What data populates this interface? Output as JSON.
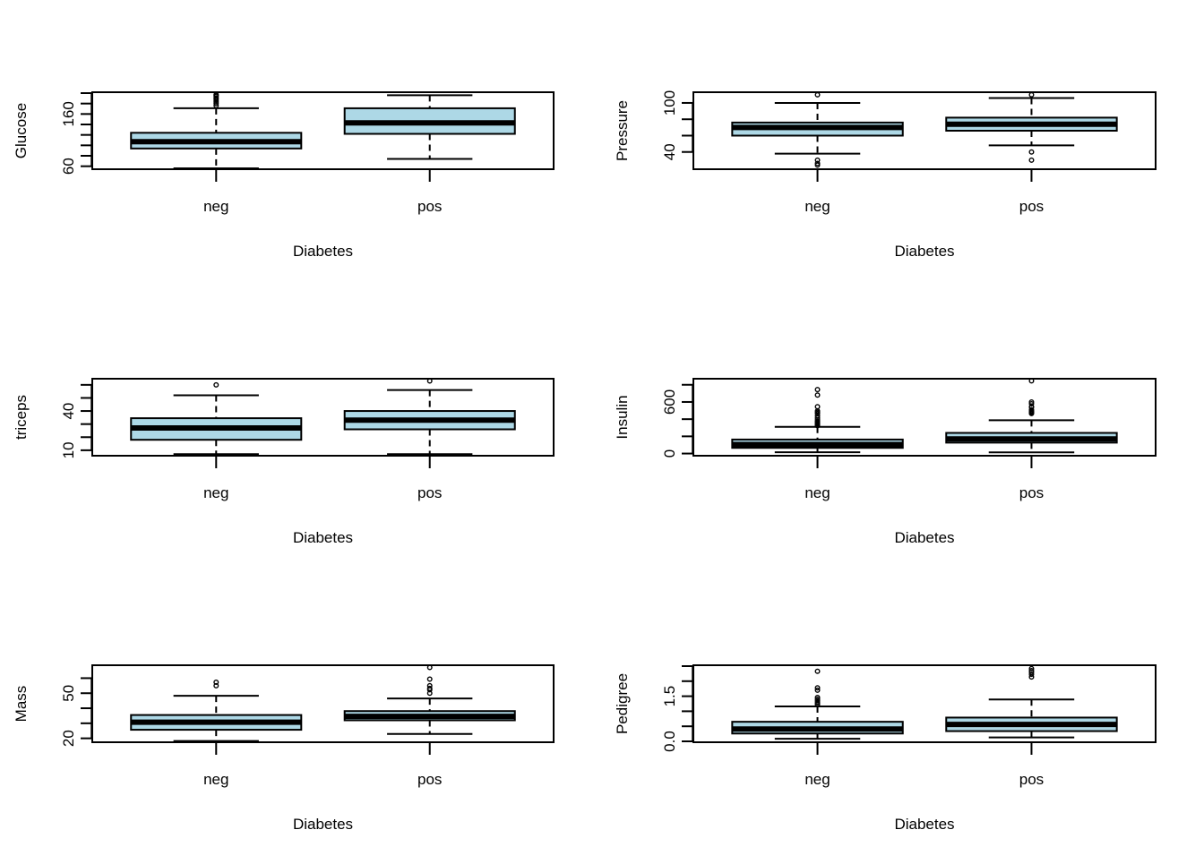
{
  "figure": {
    "layout": "3 rows x 2 columns of boxplots",
    "box_fill": "#ADD8E6",
    "line_color": "#000000"
  },
  "chart_data": [
    {
      "type": "boxplot",
      "title": "",
      "xlabel": "Diabetes",
      "ylabel": "Glucose",
      "categories": [
        "neg",
        "pos"
      ],
      "ylim": [
        56,
        200
      ],
      "yticks": [
        60,
        80,
        100,
        120,
        140,
        160,
        180,
        200
      ],
      "ytick_labels": [
        "60",
        "",
        "",
        "",
        "",
        "160",
        "",
        ""
      ],
      "grid": false,
      "series": [
        {
          "name": "neg",
          "lower_whisker": 56,
          "q1": 94,
          "median": 107,
          "q3": 124,
          "upper_whisker": 171,
          "outliers": [
            176,
            180,
            183,
            186,
            189,
            191,
            194,
            196,
            197
          ]
        },
        {
          "name": "pos",
          "lower_whisker": 74,
          "q1": 122,
          "median": 143,
          "q3": 171,
          "upper_whisker": 196,
          "outliers": []
        }
      ]
    },
    {
      "type": "boxplot",
      "title": "",
      "xlabel": "Diabetes",
      "ylabel": "Pressure",
      "categories": [
        "neg",
        "pos"
      ],
      "ylim": [
        20,
        112
      ],
      "yticks": [
        40,
        60,
        80,
        100
      ],
      "ytick_labels": [
        "40",
        "",
        "",
        "100"
      ],
      "grid": false,
      "series": [
        {
          "name": "neg",
          "lower_whisker": 38,
          "q1": 60,
          "median": 70,
          "q3": 76,
          "upper_whisker": 100,
          "outliers": [
            110,
            30,
            26,
            24
          ]
        },
        {
          "name": "pos",
          "lower_whisker": 48,
          "q1": 66,
          "median": 74,
          "q3": 82,
          "upper_whisker": 106,
          "outliers": [
            110,
            40,
            30
          ]
        }
      ]
    },
    {
      "type": "boxplot",
      "title": "",
      "xlabel": "Diabetes",
      "ylabel": "triceps",
      "categories": [
        "neg",
        "pos"
      ],
      "ylim": [
        6.5,
        64
      ],
      "yticks": [
        10,
        20,
        30,
        40,
        50,
        60
      ],
      "ytick_labels": [
        "10",
        "",
        "",
        "40",
        "",
        ""
      ],
      "grid": false,
      "series": [
        {
          "name": "neg",
          "lower_whisker": 7,
          "q1": 18,
          "median": 27,
          "q3": 34.5,
          "upper_whisker": 52,
          "outliers": [
            60
          ]
        },
        {
          "name": "pos",
          "lower_whisker": 7,
          "q1": 26,
          "median": 33,
          "q3": 40,
          "upper_whisker": 56,
          "outliers": [
            63
          ]
        }
      ]
    },
    {
      "type": "boxplot",
      "title": "",
      "xlabel": "Diabetes",
      "ylabel": "Insulin",
      "categories": [
        "neg",
        "pos"
      ],
      "ylim": [
        -15,
        860
      ],
      "yticks": [
        0,
        200,
        400,
        600,
        800
      ],
      "ytick_labels": [
        "0",
        "",
        "",
        "600",
        ""
      ],
      "grid": false,
      "series": [
        {
          "name": "neg",
          "lower_whisker": 15,
          "q1": 66,
          "median": 105,
          "q3": 163,
          "upper_whisker": 310,
          "outliers": [
            325,
            330,
            335,
            342,
            350,
            360,
            370,
            375,
            392,
            415,
            440,
            465,
            480,
            495,
            545,
            680,
            744
          ]
        },
        {
          "name": "pos",
          "lower_whisker": 14,
          "q1": 127,
          "median": 170,
          "q3": 240,
          "upper_whisker": 387,
          "outliers": [
            465,
            474,
            480,
            485,
            495,
            510,
            540,
            545,
            579,
            600,
            846
          ]
        }
      ]
    },
    {
      "type": "boxplot",
      "title": "",
      "xlabel": "Diabetes",
      "ylabel": "Mass",
      "categories": [
        "neg",
        "pos"
      ],
      "ylim": [
        18,
        68
      ],
      "yticks": [
        20,
        30,
        40,
        50,
        60
      ],
      "ytick_labels": [
        "20",
        "",
        "",
        "50",
        ""
      ],
      "grid": false,
      "series": [
        {
          "name": "neg",
          "lower_whisker": 18.2,
          "q1": 25.7,
          "median": 30.7,
          "q3": 35.5,
          "upper_whisker": 48.3,
          "outliers": [
            55,
            57.3
          ]
        },
        {
          "name": "pos",
          "lower_whisker": 22.9,
          "q1": 32,
          "median": 34.6,
          "q3": 38.1,
          "upper_whisker": 46.5,
          "outliers": [
            50,
            52.3,
            53.2,
            55,
            59.4,
            67.1
          ]
        }
      ]
    },
    {
      "type": "boxplot",
      "title": "",
      "xlabel": "Diabetes",
      "ylabel": "Pedigree",
      "categories": [
        "neg",
        "pos"
      ],
      "ylim": [
        0,
        2.5
      ],
      "yticks": [
        0.0,
        0.5,
        1.0,
        1.5,
        2.0,
        2.5
      ],
      "ytick_labels": [
        "0.0",
        "",
        "",
        "1.5",
        "",
        ""
      ],
      "grid": false,
      "series": [
        {
          "name": "neg",
          "lower_whisker": 0.085,
          "q1": 0.26,
          "median": 0.41,
          "q3": 0.65,
          "upper_whisker": 1.16,
          "outliers": [
            1.22,
            1.25,
            1.3,
            1.35,
            1.4,
            1.46,
            1.7,
            1.78,
            2.33
          ]
        },
        {
          "name": "pos",
          "lower_whisker": 0.13,
          "q1": 0.34,
          "median": 0.56,
          "q3": 0.79,
          "upper_whisker": 1.39,
          "outliers": [
            2.14,
            2.23,
            2.3,
            2.35,
            2.42
          ]
        }
      ]
    }
  ]
}
